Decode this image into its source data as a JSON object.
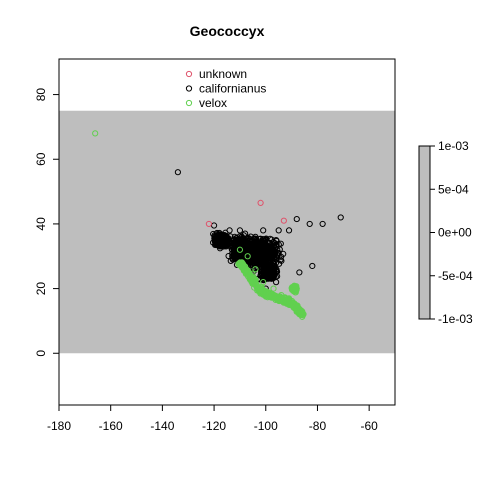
{
  "chart_data": {
    "type": "scatter",
    "title": "Geococcyx",
    "xlabel": "",
    "ylabel": "",
    "xlim": [
      -180,
      -50
    ],
    "ylim": [
      -16,
      91
    ],
    "x_ticks": [
      -180,
      -160,
      -140,
      -120,
      -100,
      -80,
      -60
    ],
    "y_ticks": [
      0,
      20,
      40,
      60,
      80
    ],
    "background_band": {
      "ymin": 0,
      "ymax": 75,
      "color": "#bebebe"
    },
    "legend": {
      "placement": "top-center",
      "entries": [
        {
          "label": "unknown",
          "color": "#df536b"
        },
        {
          "label": "californianus",
          "color": "#000000"
        },
        {
          "label": "velox",
          "color": "#61d04f"
        }
      ]
    },
    "colorbar": {
      "ticks": [
        "1e-03",
        "5e-04",
        "0e+00",
        "-5e-04",
        "-1e-03"
      ],
      "color": "#bebebe"
    },
    "series": [
      {
        "name": "unknown",
        "color": "#df536b",
        "points": [
          [
            -102,
            46.5
          ],
          [
            -93,
            41
          ],
          [
            -122,
            40
          ]
        ]
      },
      {
        "name": "californianus",
        "color": "#000000",
        "points": [
          [
            -134,
            56
          ],
          [
            -71,
            42
          ],
          [
            -78,
            40
          ],
          [
            -83,
            40
          ],
          [
            -88,
            41.5
          ],
          [
            -91,
            38
          ],
          [
            -95,
            38
          ],
          [
            -82,
            27
          ],
          [
            -87,
            25
          ],
          [
            -110,
            38
          ],
          [
            -115,
            35
          ],
          [
            -118,
            34
          ],
          [
            -113,
            32
          ],
          [
            -105,
            33
          ],
          [
            -99,
            30
          ],
          [
            -120,
            39.5
          ],
          [
            -119,
            37
          ],
          [
            -100,
            25
          ],
          [
            -97,
            27
          ],
          [
            -103,
            23
          ],
          [
            -102,
            28
          ],
          [
            -96,
            22
          ],
          [
            -110,
            30
          ],
          [
            -106,
            26
          ],
          [
            -104,
            36
          ],
          [
            -101,
            38
          ],
          [
            -109,
            34
          ],
          [
            -114,
            38
          ],
          [
            -108,
            37
          ],
          [
            -100,
            20
          ],
          [
            -96,
            35
          ],
          [
            -107,
            30
          ],
          [
            -112,
            36
          ],
          [
            -116,
            36
          ],
          [
            -95,
            31
          ],
          [
            -98,
            33
          ]
        ],
        "regions": [
          {
            "center": [
              -104,
              31
            ],
            "spread": [
              12,
              6
            ],
            "count": 700
          },
          {
            "center": [
              -117,
              35
            ],
            "spread": [
              4,
              3
            ],
            "count": 220
          },
          {
            "center": [
              -99,
              25
            ],
            "spread": [
              4,
              3
            ],
            "count": 250
          },
          {
            "center": [
              -110,
              33
            ],
            "spread": [
              4,
              4
            ],
            "count": 200
          }
        ]
      },
      {
        "name": "velox",
        "color": "#61d04f",
        "points": [
          [
            -166,
            68
          ],
          [
            -110,
            32
          ],
          [
            -107,
            30
          ],
          [
            -104,
            26
          ],
          [
            -101,
            22
          ],
          [
            -97,
            20
          ],
          [
            -94,
            18
          ],
          [
            -91,
            17
          ],
          [
            -89,
            15
          ],
          [
            -86,
            13
          ],
          [
            -89,
            20
          ]
        ],
        "regions": [
          {
            "path": [
              [
                -110,
                28
              ],
              [
                -106,
                24
              ],
              [
                -103,
                20
              ],
              [
                -99,
                18
              ],
              [
                -95,
                17
              ],
              [
                -91,
                16
              ],
              [
                -88,
                14
              ],
              [
                -86,
                12
              ]
            ],
            "spread": 1.2,
            "count": 480
          },
          {
            "center": [
              -89,
              20
            ],
            "spread": [
              1.5,
              1.5
            ],
            "count": 60
          }
        ]
      }
    ]
  }
}
